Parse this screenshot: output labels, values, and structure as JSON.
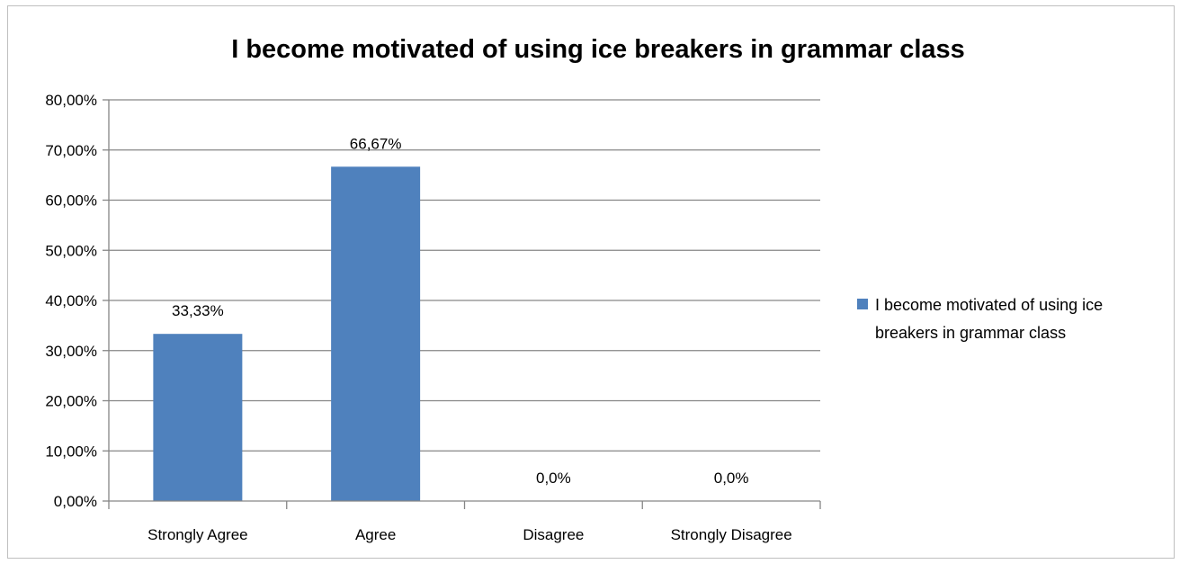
{
  "chart_data": {
    "type": "bar",
    "title": "I become motivated of using ice breakers in grammar class",
    "categories": [
      "Strongly Agree",
      "Agree",
      "Disagree",
      "Strongly Disagree"
    ],
    "series": [
      {
        "name": "I become motivated of using ice breakers in grammar class",
        "values": [
          33.33,
          66.67,
          0,
          0
        ],
        "data_labels": [
          "33,33%",
          "66,67%",
          "0,0%",
          "0,0%"
        ],
        "color": "#4f81bd"
      }
    ],
    "y_ticks": [
      0,
      10,
      20,
      30,
      40,
      50,
      60,
      70,
      80
    ],
    "y_tick_labels": [
      "0,00%",
      "10,00%",
      "20,00%",
      "30,00%",
      "40,00%",
      "50,00%",
      "60,00%",
      "70,00%",
      "80,00%"
    ],
    "ylim": [
      0,
      80
    ],
    "xlabel": "",
    "ylabel": "",
    "grid": true,
    "legend_position": "right",
    "legend_lines": [
      "I become motivated of using ice",
      "breakers in grammar class"
    ],
    "colors": {
      "bar": "#4f81bd",
      "grid": "#868686",
      "axis": "#868686",
      "text": "#000000"
    }
  }
}
